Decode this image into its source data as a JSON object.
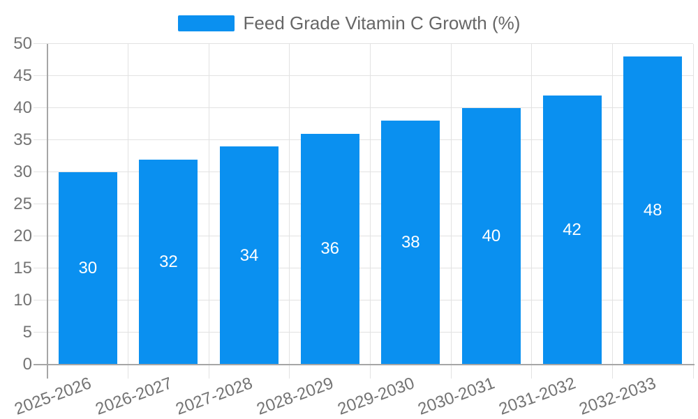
{
  "legend": {
    "label": "Feed Grade Vitamin C Growth (%)",
    "swatch_color": "#0a90f0"
  },
  "chart_data": {
    "type": "bar",
    "title": "Feed Grade Vitamin C Growth (%)",
    "categories": [
      "2025-2026",
      "2026-2027",
      "2027-2028",
      "2028-2029",
      "2029-2030",
      "2030-2031",
      "2031-2032",
      "2032-2033"
    ],
    "values": [
      30,
      32,
      34,
      36,
      38,
      40,
      42,
      48
    ],
    "xlabel": "",
    "ylabel": "",
    "ylim": [
      0,
      50
    ],
    "yticks": [
      0,
      5,
      10,
      15,
      20,
      25,
      30,
      35,
      40,
      45,
      50
    ],
    "grid": "horizontal gridlines every 5 units and vertical gridlines at category boundaries, ticks extend past axes",
    "legend_position": "top-center",
    "xtick_rotation_deg": -20,
    "value_labels": "inside bars, vertically centered",
    "colors": {
      "bar": "#0a90f0",
      "value_label": "#ffffff",
      "axis_label": "#737373",
      "legend_text": "#666666",
      "gridline": "#e2e2e2",
      "axis_line": "#a6a6a6",
      "background": "#ffffff"
    }
  }
}
